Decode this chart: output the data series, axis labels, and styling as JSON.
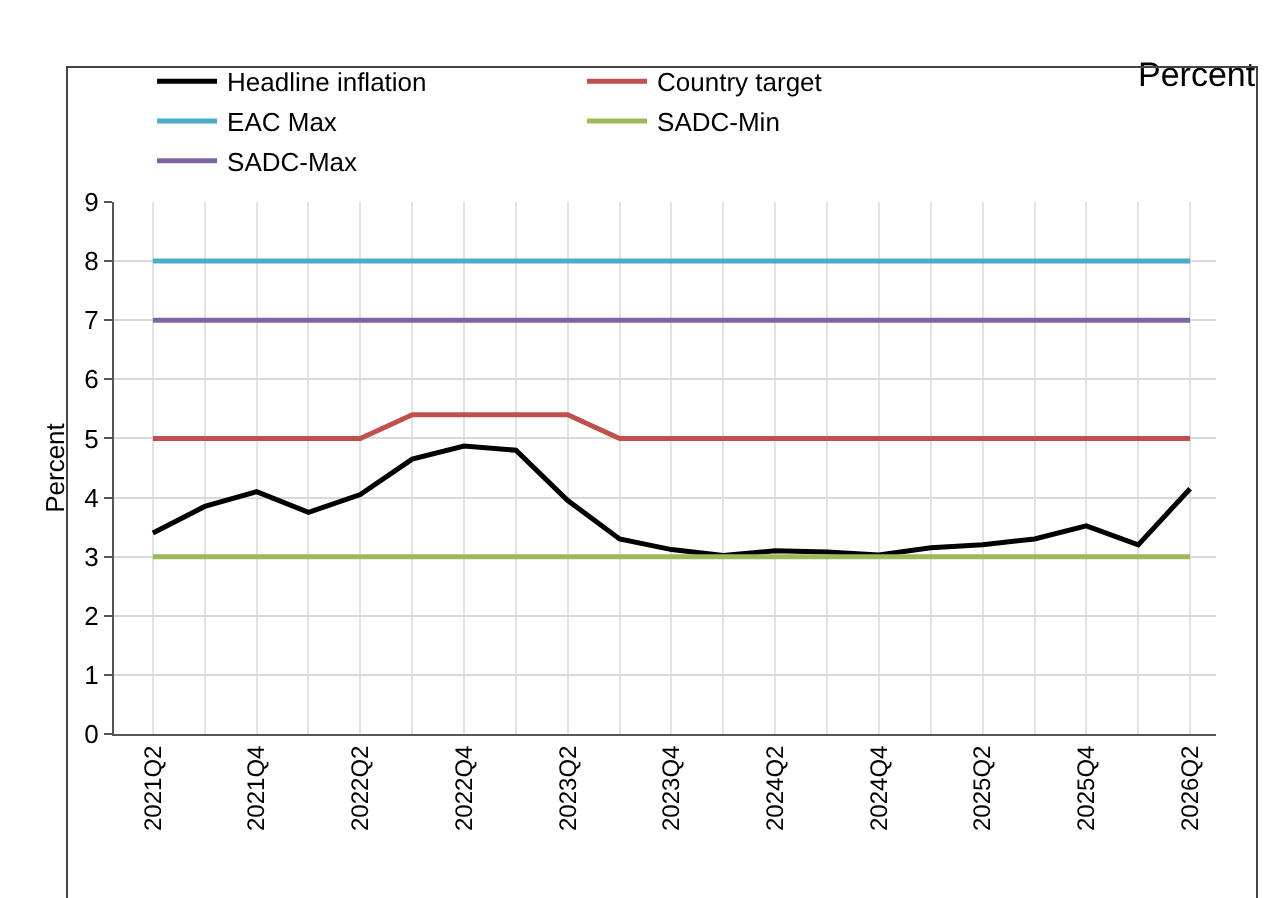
{
  "chart_data": {
    "type": "line",
    "categories": [
      "2021Q2",
      null,
      "2021Q4",
      null,
      "2022Q2",
      null,
      "2022Q4",
      null,
      "2023Q2",
      null,
      "2023Q4",
      null,
      "2024Q2",
      null,
      "2024Q4",
      null,
      "2025Q2",
      null,
      "2025Q4",
      null,
      "2026Q2"
    ],
    "series": [
      {
        "name": "Headline inflation",
        "color": "#000000",
        "values": [
          3.4,
          3.85,
          4.1,
          3.75,
          4.05,
          4.65,
          4.87,
          4.8,
          3.95,
          3.3,
          3.12,
          3.02,
          3.1,
          3.08,
          3.03,
          3.15,
          3.2,
          3.3,
          3.52,
          3.2,
          4.15
        ]
      },
      {
        "name": "Country target",
        "color": "#c0504d",
        "values": [
          5,
          5,
          5,
          5,
          5,
          5.4,
          5.4,
          5.4,
          5.4,
          5,
          5,
          5,
          5,
          5,
          5,
          5,
          5,
          5,
          5,
          5,
          5
        ]
      },
      {
        "name": "EAC Max",
        "color": "#4bacc6",
        "values": [
          8,
          8,
          8,
          8,
          8,
          8,
          8,
          8,
          8,
          8,
          8,
          8,
          8,
          8,
          8,
          8,
          8,
          8,
          8,
          8,
          8
        ]
      },
      {
        "name": "SADC-Min",
        "color": "#9bbb59",
        "values": [
          3,
          3,
          3,
          3,
          3,
          3,
          3,
          3,
          3,
          3,
          3,
          3,
          3,
          3,
          3,
          3,
          3,
          3,
          3,
          3,
          3
        ]
      },
      {
        "name": "SADC-Max",
        "color": "#8064a2",
        "values": [
          7,
          7,
          7,
          7,
          7,
          7,
          7,
          7,
          7,
          7,
          7,
          7,
          7,
          7,
          7,
          7,
          7,
          7,
          7,
          7,
          7
        ]
      }
    ],
    "ylabel": "Percent",
    "annotations": [
      "Percent"
    ],
    "ylim": [
      0,
      9
    ],
    "yticks": [
      0,
      1,
      2,
      3,
      4,
      5,
      6,
      7,
      8,
      9
    ],
    "grid": true,
    "legend": "top",
    "marker": "none",
    "line_style": "solid"
  }
}
